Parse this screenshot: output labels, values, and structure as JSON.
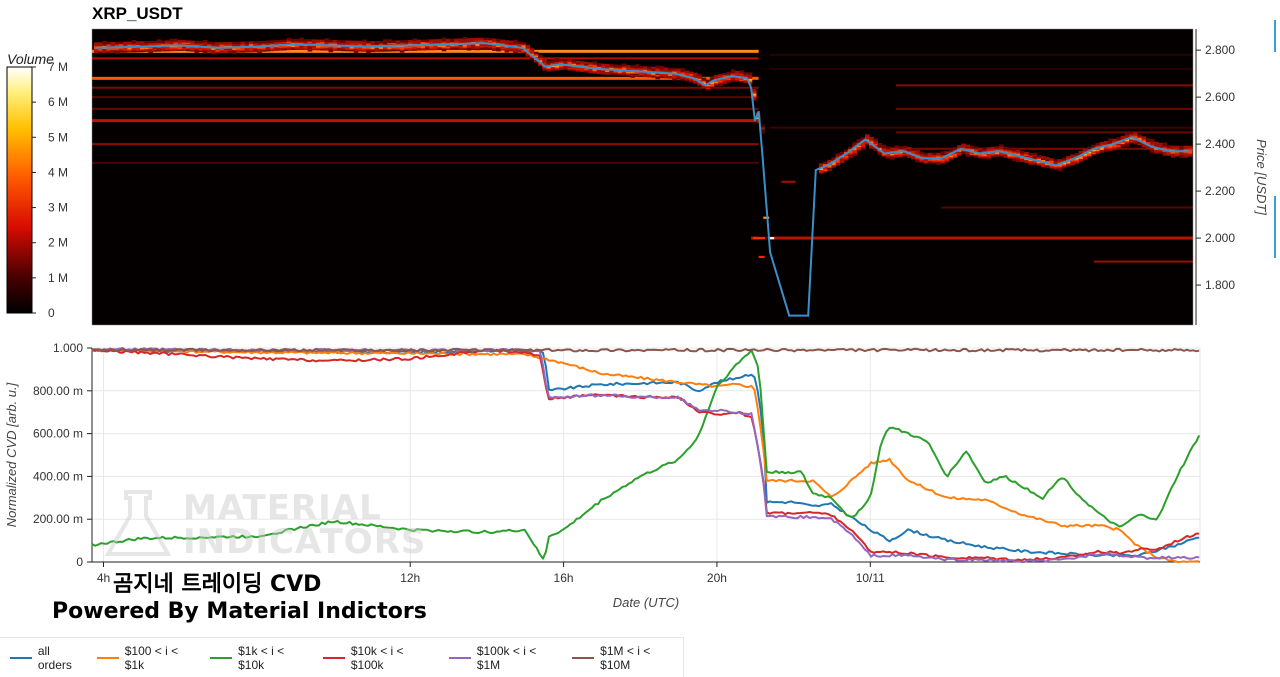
{
  "chart_data": [
    {
      "type": "heatmap",
      "title": "XRP_USDT",
      "ylabel": "Price [USDT]",
      "ylim": [
        1.63,
        2.89
      ],
      "yticks": [
        "1.800",
        "2.000",
        "2.200",
        "2.400",
        "2.600",
        "2.800"
      ],
      "ytick_values": [
        1.8,
        2.0,
        2.2,
        2.4,
        2.6,
        2.8
      ],
      "colorbar": {
        "title": "Volume",
        "ticks": [
          "0",
          "1 M",
          "2 M",
          "3 M",
          "4 M",
          "5 M",
          "6 M",
          "7 M"
        ],
        "tick_values": [
          0,
          1,
          2,
          3,
          4,
          5,
          6,
          7
        ],
        "range": [
          0,
          7
        ]
      },
      "colors": {
        "line": "#3a8fc8",
        "cmap_low": "#000000",
        "cmap_mid": "#e81c0c",
        "cmap_high": "#ffffff"
      },
      "xlim_hours": [
        3.7,
        32.6
      ],
      "price_series": {
        "x_hours": [
          3.8,
          5,
          6,
          7,
          8,
          9,
          10,
          11,
          12,
          13,
          14,
          15,
          15.3,
          15.6,
          16,
          16.5,
          17,
          18,
          19,
          19.5,
          19.8,
          20,
          20.5,
          20.9,
          21.0,
          21.1,
          21.2,
          21.3,
          21.5,
          22.0,
          22.3,
          22.5,
          22.7,
          23,
          23.5,
          24,
          24.5,
          25,
          25.5,
          26,
          26.5,
          27,
          27.5,
          28,
          28.5,
          29,
          29.5,
          30,
          30.5,
          31,
          31.5,
          32,
          32.5
        ],
        "y": [
          2.81,
          2.815,
          2.82,
          2.81,
          2.815,
          2.825,
          2.82,
          2.815,
          2.82,
          2.825,
          2.83,
          2.81,
          2.77,
          2.73,
          2.74,
          2.73,
          2.72,
          2.71,
          2.7,
          2.68,
          2.65,
          2.67,
          2.69,
          2.68,
          2.64,
          2.5,
          2.54,
          2.35,
          1.94,
          1.67,
          1.67,
          1.67,
          2.29,
          2.31,
          2.36,
          2.42,
          2.36,
          2.37,
          2.34,
          2.34,
          2.38,
          2.36,
          2.37,
          2.35,
          2.33,
          2.31,
          2.34,
          2.38,
          2.4,
          2.43,
          2.39,
          2.37,
          2.37
        ]
      }
    },
    {
      "type": "line",
      "xlabel": "Date (UTC)",
      "ylabel": "Normalized CVD [arb. u.]",
      "ylim": [
        0,
        1.0
      ],
      "yticks": [
        "0",
        "200.00 m",
        "400.00 m",
        "600.00 m",
        "800.00 m",
        "1.000"
      ],
      "ytick_values": [
        0,
        0.2,
        0.4,
        0.6,
        0.8,
        1.0
      ],
      "xlim_hours": [
        3.7,
        32.6
      ],
      "xticks": [
        "4h",
        "12h",
        "16h",
        "20h",
        "10/11"
      ],
      "xtick_values": [
        4,
        12,
        16,
        20,
        24
      ],
      "series": [
        {
          "name": "all orders",
          "color": "#1f77b4",
          "x": [
            3.7,
            8,
            12,
            15,
            15.5,
            15.6,
            16,
            17,
            19,
            19.5,
            20,
            20.5,
            20.9,
            21,
            21.2,
            21.3,
            22,
            22.5,
            23,
            24,
            24.5,
            25,
            26,
            27,
            28,
            29,
            30,
            31,
            32,
            32.6
          ],
          "y": [
            0.99,
            0.985,
            0.98,
            0.99,
            0.98,
            0.8,
            0.81,
            0.83,
            0.84,
            0.8,
            0.84,
            0.86,
            0.88,
            0.86,
            0.65,
            0.28,
            0.28,
            0.26,
            0.27,
            0.15,
            0.1,
            0.15,
            0.1,
            0.07,
            0.05,
            0.04,
            0.03,
            0.03,
            0.08,
            0.12
          ]
        },
        {
          "name": "$100 < i < $1k",
          "color": "#ff7f0e",
          "x": [
            3.7,
            8,
            12,
            15,
            15.5,
            16,
            17,
            18,
            19,
            20,
            20.5,
            20.9,
            21,
            21.2,
            21.3,
            22,
            22.5,
            23,
            24,
            24.5,
            25,
            26,
            27,
            28,
            29,
            30,
            30.5,
            31,
            31.5,
            32,
            32.6
          ],
          "y": [
            0.99,
            0.98,
            0.975,
            0.97,
            0.95,
            0.93,
            0.88,
            0.86,
            0.84,
            0.82,
            0.83,
            0.82,
            0.8,
            0.55,
            0.38,
            0.38,
            0.38,
            0.3,
            0.46,
            0.48,
            0.38,
            0.3,
            0.29,
            0.22,
            0.17,
            0.17,
            0.15,
            0.07,
            0.02,
            0.0,
            0.0
          ]
        },
        {
          "name": "$1k < i < $10k",
          "color": "#2ca02c",
          "x": [
            3.7,
            5,
            8,
            10,
            12,
            14,
            15,
            15.5,
            15.6,
            16,
            17,
            18,
            19,
            19.5,
            20,
            20.5,
            20.9,
            21.1,
            21.3,
            22,
            22.2,
            22.5,
            23,
            23.5,
            24,
            24.3,
            24.5,
            25,
            25.5,
            26,
            26.5,
            27,
            27.5,
            28,
            28.5,
            29,
            29.5,
            30,
            30.5,
            31,
            31.5,
            32,
            32.6
          ],
          "y": [
            0.08,
            0.11,
            0.12,
            0.19,
            0.15,
            0.14,
            0.15,
            0.0,
            0.12,
            0.15,
            0.29,
            0.4,
            0.48,
            0.58,
            0.82,
            0.92,
            0.99,
            0.9,
            0.42,
            0.42,
            0.42,
            0.32,
            0.3,
            0.2,
            0.3,
            0.57,
            0.63,
            0.6,
            0.56,
            0.4,
            0.52,
            0.37,
            0.4,
            0.35,
            0.3,
            0.4,
            0.3,
            0.22,
            0.16,
            0.22,
            0.2,
            0.4,
            0.6
          ]
        },
        {
          "name": "$10k < i < $100k",
          "color": "#d62728",
          "x": [
            3.7,
            6,
            8,
            10,
            12,
            14,
            15,
            15.4,
            15.6,
            16,
            17,
            18,
            19,
            19.5,
            20,
            20.5,
            20.9,
            21,
            21.2,
            21.3,
            22,
            22.5,
            23,
            23.5,
            24,
            25,
            26,
            27,
            28,
            29,
            30,
            30.5,
            31,
            31.5,
            32,
            32.6
          ],
          "y": [
            0.99,
            0.97,
            0.95,
            0.94,
            0.95,
            0.99,
            0.98,
            0.96,
            0.76,
            0.77,
            0.78,
            0.77,
            0.77,
            0.7,
            0.69,
            0.7,
            0.68,
            0.6,
            0.4,
            0.23,
            0.23,
            0.23,
            0.22,
            0.15,
            0.05,
            0.04,
            0.02,
            0.02,
            0.01,
            0.02,
            0.05,
            0.04,
            0.06,
            0.06,
            0.1,
            0.14
          ]
        },
        {
          "name": "$100k < i < $1M",
          "color": "#9467bd",
          "x": [
            3.7,
            8,
            12,
            15,
            15.4,
            15.6,
            16,
            17,
            18,
            19,
            19.5,
            20,
            20.5,
            20.9,
            21,
            21.2,
            21.3,
            22,
            22.5,
            23,
            23.5,
            24,
            25,
            26,
            27,
            28,
            29,
            30,
            31,
            32,
            32.6
          ],
          "y": [
            0.995,
            0.99,
            0.99,
            0.99,
            0.99,
            0.77,
            0.77,
            0.78,
            0.77,
            0.77,
            0.71,
            0.71,
            0.7,
            0.69,
            0.6,
            0.4,
            0.21,
            0.21,
            0.21,
            0.2,
            0.13,
            0.03,
            0.03,
            0.01,
            0.01,
            0.0,
            0.01,
            0.04,
            0.02,
            0.02,
            0.02
          ]
        },
        {
          "name": "$1M < i < $10M",
          "color": "#8c564b",
          "x": [
            3.7,
            32.6
          ],
          "y": [
            0.99,
            0.99
          ]
        }
      ]
    }
  ],
  "captions": {
    "line1": "곰지네 트레이딩 CVD",
    "line2": "Powered By Material Indictors"
  },
  "watermark": {
    "line1": "MATERIAL",
    "line2": "INDICATORS"
  }
}
